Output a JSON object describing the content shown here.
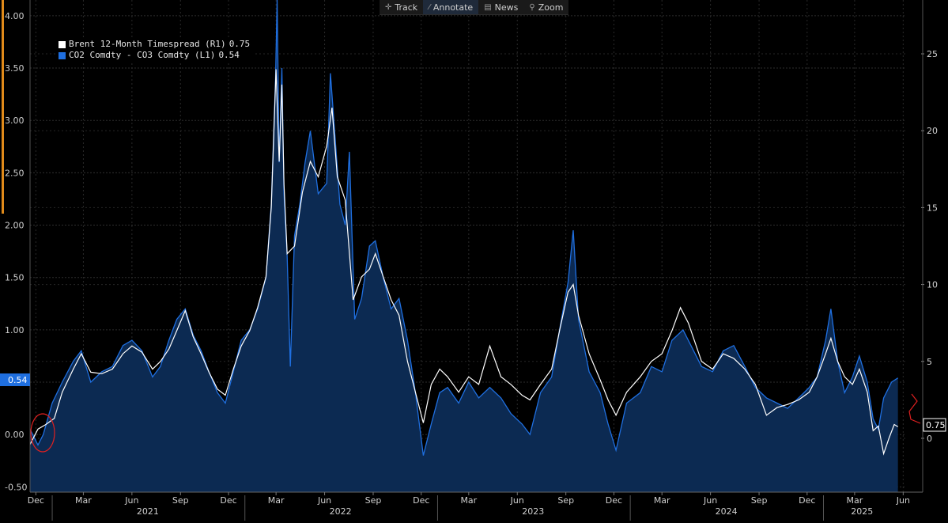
{
  "toolbar": {
    "track_label": "Track",
    "annotate_label": "Annotate",
    "news_label": "News",
    "zoom_label": "Zoom"
  },
  "legend": {
    "brent_label": "Brent 12-Month Timespread (R1)",
    "brent_value": "0.75",
    "co2_label": "CO2 Comdty - CO3 Comdty (L1)",
    "co2_value": "0.54"
  },
  "badges": {
    "left_last": "0.54",
    "right_last": "0.75"
  },
  "colors": {
    "background": "#000000",
    "co2_line": "#1f6fe0",
    "co2_fill": "#0c2a52",
    "brent_line": "#ffffff",
    "grid": "#2e2e2e",
    "annotation": "#e02020"
  },
  "chart_data": {
    "type": "line",
    "title": "",
    "left_axis": {
      "min": -0.55,
      "max": 4.15,
      "ticks": [
        -0.5,
        0.0,
        0.5,
        1.0,
        1.5,
        2.0,
        2.5,
        3.0,
        3.5,
        4.0
      ],
      "tick_labels": [
        "-0.50",
        "0.00",
        "0.50",
        "1.00",
        "1.50",
        "2.00",
        "2.50",
        "3.00",
        "3.50",
        "4.00"
      ]
    },
    "right_axis": {
      "min": -3.5,
      "max": 28.5,
      "ticks": [
        0,
        5,
        10,
        15,
        20,
        25
      ],
      "tick_labels": [
        "0",
        "5",
        "10",
        "15",
        "20",
        "25"
      ]
    },
    "x_axis": {
      "start": "2020-11-20",
      "end": "2025-06-05",
      "month_labels": [
        {
          "date": "2020-12-01",
          "label": "Dec"
        },
        {
          "date": "2021-03-01",
          "label": "Mar"
        },
        {
          "date": "2021-06-01",
          "label": "Jun"
        },
        {
          "date": "2021-09-01",
          "label": "Sep"
        },
        {
          "date": "2021-12-01",
          "label": "Dec"
        },
        {
          "date": "2022-03-01",
          "label": "Mar"
        },
        {
          "date": "2022-06-01",
          "label": "Jun"
        },
        {
          "date": "2022-09-01",
          "label": "Sep"
        },
        {
          "date": "2022-12-01",
          "label": "Dec"
        },
        {
          "date": "2023-03-01",
          "label": "Mar"
        },
        {
          "date": "2023-06-01",
          "label": "Jun"
        },
        {
          "date": "2023-09-01",
          "label": "Sep"
        },
        {
          "date": "2023-12-01",
          "label": "Dec"
        },
        {
          "date": "2024-03-01",
          "label": "Mar"
        },
        {
          "date": "2024-06-01",
          "label": "Jun"
        },
        {
          "date": "2024-09-01",
          "label": "Sep"
        },
        {
          "date": "2024-12-01",
          "label": "Dec"
        },
        {
          "date": "2025-03-01",
          "label": "Mar"
        },
        {
          "date": "2025-06-01",
          "label": "Jun"
        }
      ],
      "year_labels": [
        {
          "date": "2021-07-01",
          "label": "2021"
        },
        {
          "date": "2022-07-01",
          "label": "2022"
        },
        {
          "date": "2023-07-01",
          "label": "2023"
        },
        {
          "date": "2024-07-01",
          "label": "2024"
        },
        {
          "date": "2025-03-15",
          "label": "2025"
        }
      ],
      "year_boundaries": [
        "2021-01-01",
        "2022-01-01",
        "2023-01-01",
        "2024-01-01",
        "2025-01-01"
      ]
    },
    "series": [
      {
        "name": "CO2 Comdty - CO3 Comdty (L1)",
        "axis": "left",
        "style": "area",
        "points": [
          [
            "2020-11-20",
            0.05
          ],
          [
            "2020-12-05",
            -0.1
          ],
          [
            "2020-12-15",
            0.0
          ],
          [
            "2021-01-01",
            0.3
          ],
          [
            "2021-01-20",
            0.5
          ],
          [
            "2021-02-10",
            0.7
          ],
          [
            "2021-02-25",
            0.8
          ],
          [
            "2021-03-15",
            0.5
          ],
          [
            "2021-04-05",
            0.6
          ],
          [
            "2021-04-25",
            0.65
          ],
          [
            "2021-05-15",
            0.85
          ],
          [
            "2021-06-01",
            0.9
          ],
          [
            "2021-06-20",
            0.8
          ],
          [
            "2021-07-10",
            0.55
          ],
          [
            "2021-07-25",
            0.65
          ],
          [
            "2021-08-10",
            0.9
          ],
          [
            "2021-08-25",
            1.1
          ],
          [
            "2021-09-10",
            1.2
          ],
          [
            "2021-09-25",
            0.95
          ],
          [
            "2021-10-10",
            0.8
          ],
          [
            "2021-10-25",
            0.6
          ],
          [
            "2021-11-10",
            0.4
          ],
          [
            "2021-11-25",
            0.3
          ],
          [
            "2021-12-10",
            0.6
          ],
          [
            "2021-12-25",
            0.9
          ],
          [
            "2022-01-10",
            1.0
          ],
          [
            "2022-01-25",
            1.2
          ],
          [
            "2022-02-10",
            1.5
          ],
          [
            "2022-02-20",
            2.2
          ],
          [
            "2022-02-28",
            3.4
          ],
          [
            "2022-03-03",
            4.15
          ],
          [
            "2022-03-07",
            2.6
          ],
          [
            "2022-03-12",
            3.5
          ],
          [
            "2022-03-16",
            2.3
          ],
          [
            "2022-03-22",
            1.7
          ],
          [
            "2022-03-28",
            0.65
          ],
          [
            "2022-04-05",
            1.9
          ],
          [
            "2022-04-15",
            2.2
          ],
          [
            "2022-04-25",
            2.6
          ],
          [
            "2022-05-05",
            2.9
          ],
          [
            "2022-05-20",
            2.3
          ],
          [
            "2022-06-05",
            2.4
          ],
          [
            "2022-06-12",
            3.45
          ],
          [
            "2022-06-20",
            2.9
          ],
          [
            "2022-06-30",
            2.2
          ],
          [
            "2022-07-10",
            2.0
          ],
          [
            "2022-07-18",
            2.7
          ],
          [
            "2022-07-28",
            1.1
          ],
          [
            "2022-08-10",
            1.3
          ],
          [
            "2022-08-25",
            1.8
          ],
          [
            "2022-09-05",
            1.85
          ],
          [
            "2022-09-20",
            1.5
          ],
          [
            "2022-10-05",
            1.2
          ],
          [
            "2022-10-20",
            1.3
          ],
          [
            "2022-11-05",
            0.9
          ],
          [
            "2022-11-20",
            0.4
          ],
          [
            "2022-12-05",
            -0.2
          ],
          [
            "2022-12-20",
            0.1
          ],
          [
            "2023-01-05",
            0.4
          ],
          [
            "2023-01-20",
            0.45
          ],
          [
            "2023-02-10",
            0.3
          ],
          [
            "2023-03-01",
            0.5
          ],
          [
            "2023-03-20",
            0.35
          ],
          [
            "2023-04-10",
            0.45
          ],
          [
            "2023-05-01",
            0.35
          ],
          [
            "2023-05-20",
            0.2
          ],
          [
            "2023-06-10",
            0.1
          ],
          [
            "2023-06-25",
            0.0
          ],
          [
            "2023-07-15",
            0.4
          ],
          [
            "2023-08-05",
            0.55
          ],
          [
            "2023-08-20",
            1.0
          ],
          [
            "2023-09-05",
            1.45
          ],
          [
            "2023-09-15",
            1.95
          ],
          [
            "2023-09-25",
            1.1
          ],
          [
            "2023-10-15",
            0.6
          ],
          [
            "2023-11-05",
            0.4
          ],
          [
            "2023-11-20",
            0.1
          ],
          [
            "2023-12-05",
            -0.15
          ],
          [
            "2023-12-25",
            0.3
          ],
          [
            "2024-01-20",
            0.4
          ],
          [
            "2024-02-10",
            0.65
          ],
          [
            "2024-03-01",
            0.6
          ],
          [
            "2024-03-20",
            0.9
          ],
          [
            "2024-04-10",
            1.0
          ],
          [
            "2024-04-25",
            0.85
          ],
          [
            "2024-05-15",
            0.65
          ],
          [
            "2024-06-05",
            0.6
          ],
          [
            "2024-06-25",
            0.8
          ],
          [
            "2024-07-15",
            0.85
          ],
          [
            "2024-08-05",
            0.65
          ],
          [
            "2024-08-25",
            0.45
          ],
          [
            "2024-09-15",
            0.35
          ],
          [
            "2024-10-05",
            0.3
          ],
          [
            "2024-10-25",
            0.25
          ],
          [
            "2024-11-15",
            0.35
          ],
          [
            "2024-12-05",
            0.45
          ],
          [
            "2024-12-20",
            0.55
          ],
          [
            "2025-01-05",
            0.9
          ],
          [
            "2025-01-15",
            1.2
          ],
          [
            "2025-01-28",
            0.7
          ],
          [
            "2025-02-10",
            0.4
          ],
          [
            "2025-02-25",
            0.55
          ],
          [
            "2025-03-10",
            0.75
          ],
          [
            "2025-03-25",
            0.5
          ],
          [
            "2025-04-05",
            0.15
          ],
          [
            "2025-04-15",
            0.05
          ],
          [
            "2025-04-25",
            0.35
          ],
          [
            "2025-05-10",
            0.5
          ],
          [
            "2025-05-22",
            0.54
          ]
        ]
      },
      {
        "name": "Brent 12-Month Timespread (R1)",
        "axis": "right",
        "style": "line",
        "points": [
          [
            "2020-11-20",
            -0.4
          ],
          [
            "2020-12-05",
            0.6
          ],
          [
            "2020-12-20",
            0.9
          ],
          [
            "2021-01-05",
            1.3
          ],
          [
            "2021-01-20",
            3.0
          ],
          [
            "2021-02-10",
            4.5
          ],
          [
            "2021-02-25",
            5.5
          ],
          [
            "2021-03-15",
            4.3
          ],
          [
            "2021-04-05",
            4.2
          ],
          [
            "2021-04-25",
            4.5
          ],
          [
            "2021-05-15",
            5.5
          ],
          [
            "2021-06-01",
            6.0
          ],
          [
            "2021-06-20",
            5.6
          ],
          [
            "2021-07-10",
            4.5
          ],
          [
            "2021-07-25",
            5.0
          ],
          [
            "2021-08-10",
            5.8
          ],
          [
            "2021-08-25",
            7.0
          ],
          [
            "2021-09-10",
            8.3
          ],
          [
            "2021-09-25",
            6.6
          ],
          [
            "2021-10-10",
            5.5
          ],
          [
            "2021-10-25",
            4.3
          ],
          [
            "2021-11-10",
            3.2
          ],
          [
            "2021-11-25",
            2.8
          ],
          [
            "2021-12-10",
            4.5
          ],
          [
            "2021-12-25",
            6.0
          ],
          [
            "2022-01-10",
            7.0
          ],
          [
            "2022-01-25",
            8.5
          ],
          [
            "2022-02-10",
            10.5
          ],
          [
            "2022-02-20",
            15.0
          ],
          [
            "2022-03-01",
            24.0
          ],
          [
            "2022-03-07",
            18.0
          ],
          [
            "2022-03-12",
            23.0
          ],
          [
            "2022-03-16",
            16.5
          ],
          [
            "2022-03-22",
            12.0
          ],
          [
            "2022-04-05",
            12.5
          ],
          [
            "2022-04-20",
            16.0
          ],
          [
            "2022-05-05",
            18.0
          ],
          [
            "2022-05-20",
            17.0
          ],
          [
            "2022-06-05",
            19.0
          ],
          [
            "2022-06-15",
            21.5
          ],
          [
            "2022-06-25",
            17.0
          ],
          [
            "2022-07-10",
            15.5
          ],
          [
            "2022-07-25",
            9.0
          ],
          [
            "2022-08-10",
            10.5
          ],
          [
            "2022-08-25",
            11.0
          ],
          [
            "2022-09-05",
            12.0
          ],
          [
            "2022-09-20",
            10.5
          ],
          [
            "2022-10-05",
            9.0
          ],
          [
            "2022-10-20",
            8.0
          ],
          [
            "2022-11-05",
            5.0
          ],
          [
            "2022-11-20",
            3.0
          ],
          [
            "2022-12-05",
            1.0
          ],
          [
            "2022-12-20",
            3.5
          ],
          [
            "2023-01-05",
            4.5
          ],
          [
            "2023-01-20",
            4.0
          ],
          [
            "2023-02-10",
            3.0
          ],
          [
            "2023-03-01",
            4.0
          ],
          [
            "2023-03-20",
            3.5
          ],
          [
            "2023-04-10",
            6.0
          ],
          [
            "2023-05-01",
            4.0
          ],
          [
            "2023-05-20",
            3.5
          ],
          [
            "2023-06-10",
            2.8
          ],
          [
            "2023-06-25",
            2.5
          ],
          [
            "2023-07-15",
            3.5
          ],
          [
            "2023-08-05",
            4.5
          ],
          [
            "2023-08-20",
            7.0
          ],
          [
            "2023-09-05",
            9.5
          ],
          [
            "2023-09-15",
            10.0
          ],
          [
            "2023-09-25",
            8.0
          ],
          [
            "2023-10-15",
            5.5
          ],
          [
            "2023-11-05",
            3.8
          ],
          [
            "2023-11-20",
            2.5
          ],
          [
            "2023-12-05",
            1.5
          ],
          [
            "2023-12-25",
            3.0
          ],
          [
            "2024-01-20",
            4.0
          ],
          [
            "2024-02-10",
            5.0
          ],
          [
            "2024-03-01",
            5.5
          ],
          [
            "2024-03-20",
            7.0
          ],
          [
            "2024-04-05",
            8.5
          ],
          [
            "2024-04-20",
            7.5
          ],
          [
            "2024-05-15",
            5.0
          ],
          [
            "2024-06-05",
            4.5
          ],
          [
            "2024-06-25",
            5.5
          ],
          [
            "2024-07-15",
            5.2
          ],
          [
            "2024-08-05",
            4.5
          ],
          [
            "2024-08-25",
            3.5
          ],
          [
            "2024-09-15",
            1.5
          ],
          [
            "2024-10-05",
            2.0
          ],
          [
            "2024-10-25",
            2.2
          ],
          [
            "2024-11-15",
            2.5
          ],
          [
            "2024-12-05",
            3.0
          ],
          [
            "2024-12-20",
            4.0
          ],
          [
            "2025-01-05",
            5.5
          ],
          [
            "2025-01-15",
            6.5
          ],
          [
            "2025-01-28",
            5.0
          ],
          [
            "2025-02-10",
            4.0
          ],
          [
            "2025-02-25",
            3.5
          ],
          [
            "2025-03-10",
            4.5
          ],
          [
            "2025-03-25",
            3.0
          ],
          [
            "2025-04-05",
            0.5
          ],
          [
            "2025-04-15",
            0.8
          ],
          [
            "2025-04-25",
            -1.0
          ],
          [
            "2025-05-05",
            0.0
          ],
          [
            "2025-05-15",
            0.9
          ],
          [
            "2025-05-22",
            0.75
          ]
        ]
      }
    ]
  }
}
